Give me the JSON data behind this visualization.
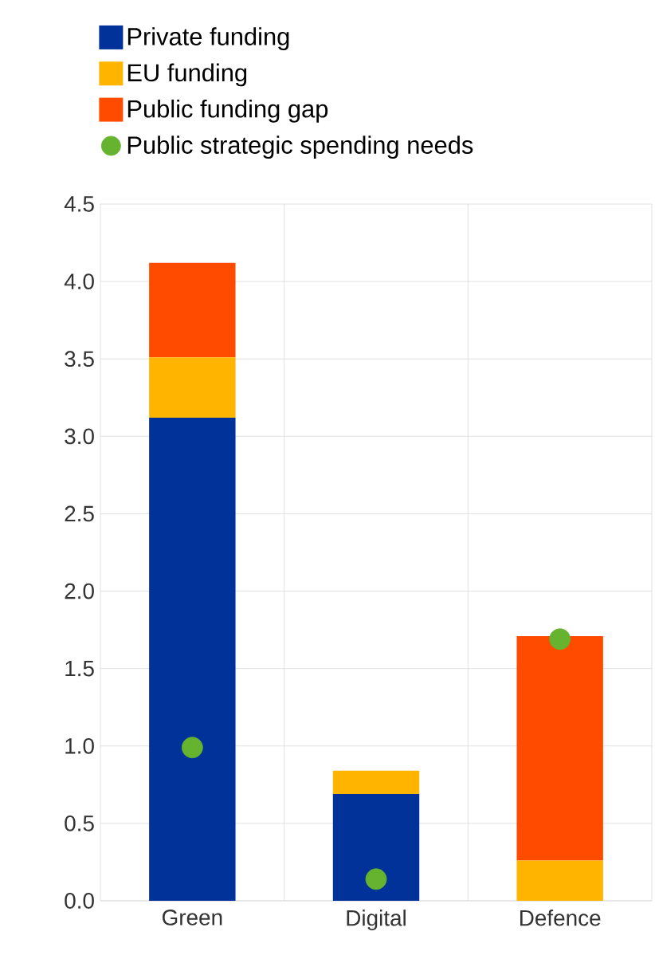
{
  "chart_data": {
    "type": "bar",
    "stacked": true,
    "categories": [
      "Green",
      "Digital",
      "Defence"
    ],
    "series": [
      {
        "name": "Private funding",
        "color": "#003299",
        "values": [
          3.12,
          0.69,
          0
        ]
      },
      {
        "name": "EU funding",
        "color": "#ffb400",
        "values": [
          0.39,
          0.15,
          0.26
        ]
      },
      {
        "name": "Public funding gap",
        "color": "#ff4b00",
        "values": [
          0.61,
          0,
          1.45
        ]
      },
      {
        "name": "Public strategic spending needs",
        "type": "scatter",
        "color": "#65b32e",
        "x": [
          "Green",
          "Digital",
          "Defence"
        ],
        "values": [
          0.99,
          0.14,
          1.69
        ]
      }
    ],
    "ylim": [
      0,
      4.5
    ],
    "yticks": [
      {
        "value": 0,
        "label": "0.0"
      },
      {
        "value": 0.5,
        "label": "0.5"
      },
      {
        "value": 1,
        "label": "1.0"
      },
      {
        "value": 1.5,
        "label": "1.5"
      },
      {
        "value": 2,
        "label": "2.0"
      },
      {
        "value": 2.5,
        "label": "2.5"
      },
      {
        "value": 3,
        "label": "3.0"
      },
      {
        "value": 3.5,
        "label": "3.5"
      },
      {
        "value": 4,
        "label": "4.0"
      },
      {
        "value": 4.5,
        "label": "4.5"
      }
    ],
    "grid": true,
    "legend": "top left",
    "marker": "circle"
  }
}
